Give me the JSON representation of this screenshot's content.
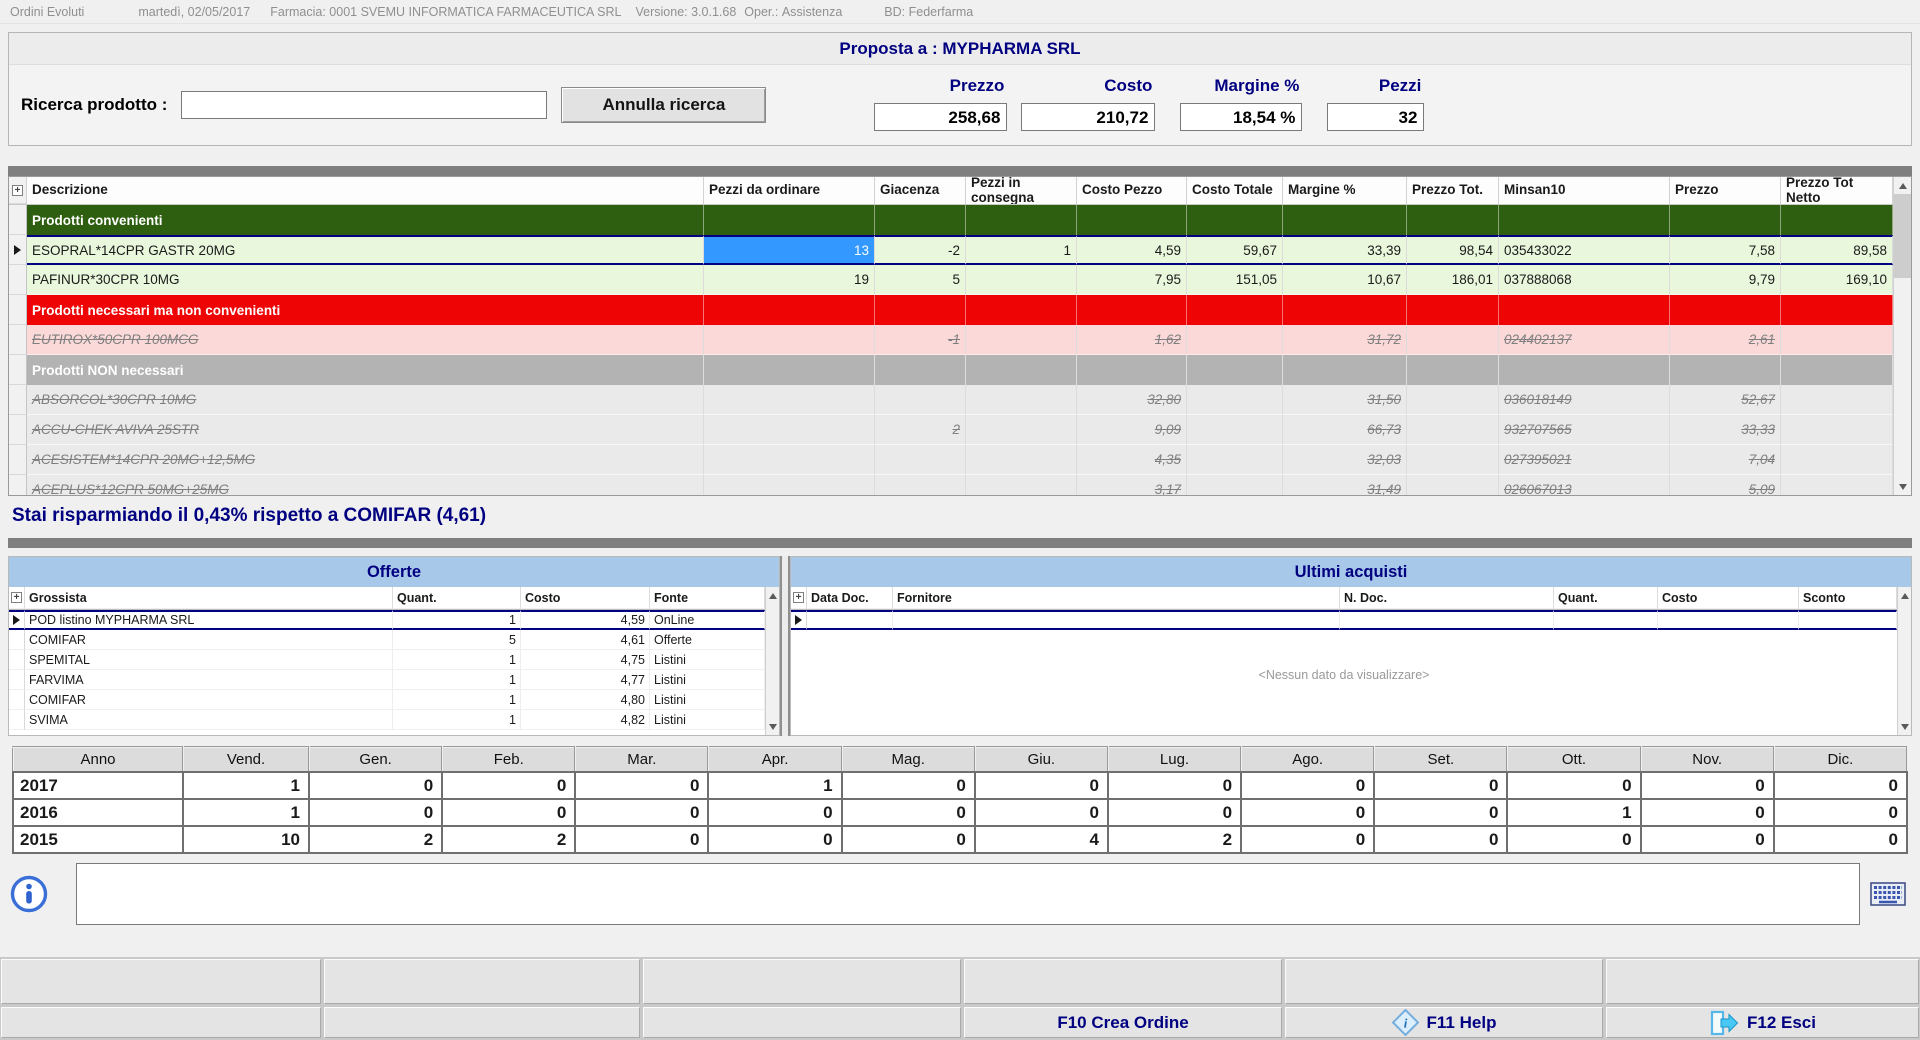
{
  "colors": {
    "accent_navy": "#000080",
    "band_green": "#2e5e10",
    "band_red": "#ee0404",
    "band_gray": "#b3b3b3",
    "row_green": "#e9f7dc",
    "row_pink": "#fbd9d9",
    "row_gray": "#eaeaea",
    "qty_highlight_blue": "#3398ff",
    "panel_band_blue": "#a8c8ea"
  },
  "titlebar": {
    "app_title": "Ordini Evoluti",
    "date": "martedì, 02/05/2017",
    "farmacia_label": "Farmacia:",
    "farmacia_value": "0001 SVEMU INFORMATICA FARMACEUTICA SRL",
    "versione_label": "Versione:",
    "versione_value": "3.0.1.68",
    "oper_label": "Oper.:",
    "oper_value": "Assistenza",
    "bd_label": "BD:",
    "bd_value": "Federfarma"
  },
  "header": {
    "title": "Proposta a : MYPHARMA SRL",
    "search_label": "Ricerca prodotto :",
    "search_value": "",
    "cancel_button": "Annulla ricerca",
    "summary": [
      {
        "label": "Prezzo",
        "value": "258,68"
      },
      {
        "label": "Costo",
        "value": "210,72"
      },
      {
        "label": "Margine %",
        "value": "18,54 %"
      },
      {
        "label": "Pezzi",
        "value": "32"
      }
    ]
  },
  "products_table": {
    "columns": [
      "Descrizione",
      "Pezzi da ordinare",
      "Giacenza",
      "Pezzi in consegna",
      "Costo Pezzo",
      "Costo Totale",
      "Margine %",
      "Prezzo Tot.",
      "Minsan10",
      "Prezzo",
      "Prezzo Tot Netto"
    ],
    "rows": [
      {
        "kind": "section",
        "style": "green",
        "label": "Prodotti convenienti"
      },
      {
        "kind": "product",
        "style": "green",
        "selected": true,
        "qty_highlight": true,
        "desc": "ESOPRAL*14CPR GASTR 20MG",
        "pezzi_da_ordinare": "13",
        "giacenza": "-2",
        "pezzi_in_consegna": "1",
        "costo_pezzo": "4,59",
        "costo_totale": "59,67",
        "margine": "33,39",
        "prezzo_tot": "98,54",
        "minsan10": "035433022",
        "prezzo": "7,58",
        "prezzo_tot_netto": "89,58"
      },
      {
        "kind": "product",
        "style": "green",
        "desc": "PAFINUR*30CPR 10MG",
        "pezzi_da_ordinare": "19",
        "giacenza": "5",
        "pezzi_in_consegna": "",
        "costo_pezzo": "7,95",
        "costo_totale": "151,05",
        "margine": "10,67",
        "prezzo_tot": "186,01",
        "minsan10": "037888068",
        "prezzo": "9,79",
        "prezzo_tot_netto": "169,10"
      },
      {
        "kind": "section",
        "style": "red",
        "label": "Prodotti necessari ma non convenienti"
      },
      {
        "kind": "product",
        "style": "pink",
        "struck": true,
        "desc": "EUTIROX*50CPR 100MCG",
        "giacenza": "-1",
        "costo_pezzo": "1,62",
        "margine": "31,72",
        "minsan10": "024402137",
        "prezzo": "2,61"
      },
      {
        "kind": "section",
        "style": "gray",
        "label": "Prodotti NON necessari"
      },
      {
        "kind": "product",
        "style": "grayitem",
        "struck": true,
        "desc": "ABSORCOL*30CPR 10MG",
        "costo_pezzo": "32,80",
        "margine": "31,50",
        "minsan10": "036018149",
        "prezzo": "52,67"
      },
      {
        "kind": "product",
        "style": "grayitem",
        "struck": true,
        "desc": "ACCU-CHEK AVIVA 25STR",
        "giacenza": "2",
        "costo_pezzo": "9,09",
        "margine": "66,73",
        "minsan10": "932707565",
        "prezzo": "33,33"
      },
      {
        "kind": "product",
        "style": "grayitem",
        "struck": true,
        "desc": "ACESISTEM*14CPR 20MG+12,5MG",
        "costo_pezzo": "4,35",
        "margine": "32,03",
        "minsan10": "027395021",
        "prezzo": "7,04"
      },
      {
        "kind": "product",
        "style": "grayitem",
        "struck": true,
        "desc": "ACEPLUS*12CPR 50MG+25MG",
        "costo_pezzo": "3,17",
        "margine": "31,49",
        "minsan10": "026067013",
        "prezzo": "5,09"
      }
    ]
  },
  "savings_text": "Stai risparmiando il  0,43% rispetto a COMIFAR (4,61)",
  "offers": {
    "title": "Offerte",
    "columns": [
      "Grossista",
      "Quant.",
      "Costo",
      "Fonte"
    ],
    "rows": [
      {
        "selected": true,
        "grossista": "POD listino MYPHARMA SRL",
        "quant": "1",
        "costo": "4,59",
        "fonte": "OnLine"
      },
      {
        "grossista": "COMIFAR",
        "quant": "5",
        "costo": "4,61",
        "fonte": "Offerte"
      },
      {
        "grossista": "SPEMITAL",
        "quant": "1",
        "costo": "4,75",
        "fonte": "Listini"
      },
      {
        "grossista": "FARVIMA",
        "quant": "1",
        "costo": "4,77",
        "fonte": "Listini"
      },
      {
        "grossista": "COMIFAR",
        "quant": "1",
        "costo": "4,80",
        "fonte": "Listini"
      },
      {
        "grossista": "SVIMA",
        "quant": "1",
        "costo": "4,82",
        "fonte": "Listini"
      }
    ]
  },
  "purchases": {
    "title": "Ultimi acquisti",
    "columns": [
      "Data Doc.",
      "Fornitore",
      "N. Doc.",
      "Quant.",
      "Costo",
      "Sconto"
    ],
    "empty_text": "<Nessun dato da visualizzare>"
  },
  "history": {
    "columns": [
      "Anno",
      "Vend.",
      "Gen.",
      "Feb.",
      "Mar.",
      "Apr.",
      "Mag.",
      "Giu.",
      "Lug.",
      "Ago.",
      "Set.",
      "Ott.",
      "Nov.",
      "Dic."
    ],
    "rows": [
      [
        "2017",
        "1",
        "0",
        "0",
        "0",
        "1",
        "0",
        "0",
        "0",
        "0",
        "0",
        "0",
        "0",
        "0"
      ],
      [
        "2016",
        "1",
        "0",
        "0",
        "0",
        "0",
        "0",
        "0",
        "0",
        "0",
        "0",
        "1",
        "0",
        "0"
      ],
      [
        "2015",
        "10",
        "2",
        "2",
        "0",
        "0",
        "0",
        "4",
        "2",
        "0",
        "0",
        "0",
        "0",
        "0"
      ]
    ]
  },
  "message": {
    "value": ""
  },
  "footer": {
    "f10_label": "F10 Crea Ordine",
    "f11_label": "F11 Help",
    "f12_label": "F12 Esci"
  }
}
